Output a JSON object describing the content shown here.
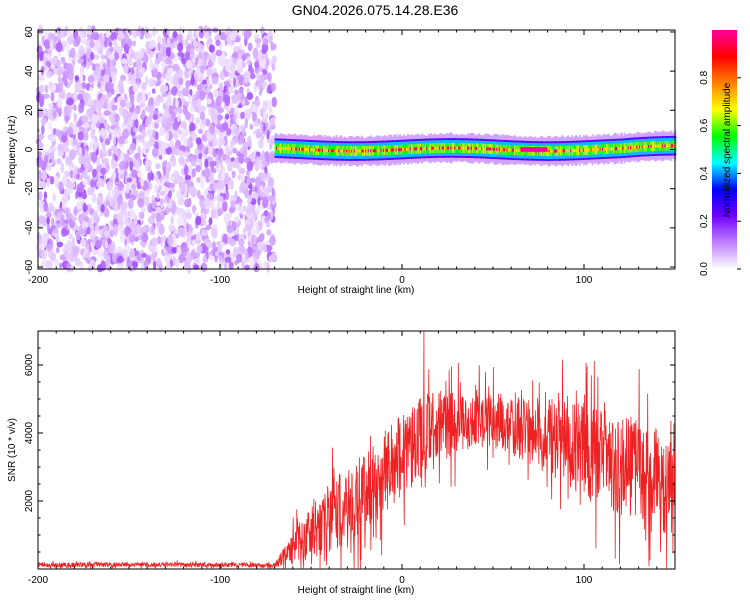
{
  "title": "GN04.2026.075.14.28.E36",
  "chart_data": [
    {
      "type": "heatmap",
      "xlabel": "Height of straight line (km)",
      "ylabel": "Frequency (Hz)",
      "xlim": [
        -200,
        150
      ],
      "ylim": [
        -61,
        61
      ],
      "xticks": [
        "-200",
        "-100",
        "0",
        "100"
      ],
      "yticks": [
        "60",
        "40",
        "20",
        "0",
        "-20",
        "-40",
        "-60"
      ],
      "colorbar": {
        "label": "Normalized spectral amplitude",
        "range": [
          0.0,
          1.0
        ],
        "ticks": [
          "0.0",
          "0.2",
          "0.4",
          "0.6",
          "0.8"
        ],
        "colors": [
          "#ffffff",
          "#c080ff",
          "#7000ff",
          "#0000ff",
          "#00ffff",
          "#00ff00",
          "#ffff00",
          "#ff8000",
          "#ff0000",
          "#ff00a0"
        ]
      },
      "regions": [
        {
          "description_id": "noise",
          "x_range": [
            -200,
            -70
          ],
          "y_range": [
            -61,
            61
          ],
          "amplitude_range": [
            0.0,
            0.1
          ]
        },
        {
          "description_id": "signal",
          "x_range": [
            -70,
            150
          ],
          "center_frequency_hz": 0,
          "half_width_hz": 4,
          "peak_amplitude": 1.0
        }
      ]
    },
    {
      "type": "line",
      "xlabel": "Height of straight line (km)",
      "ylabel": "SNR (10 * v/v)",
      "xlim": [
        -200,
        150
      ],
      "ylim": [
        0,
        7000
      ],
      "xticks": [
        "-200",
        "-100",
        "0",
        "100"
      ],
      "yticks": [
        "2000",
        "4000",
        "6000"
      ],
      "series_color": "#ee2222",
      "envelope_x": [
        -200,
        -150,
        -100,
        -70,
        -60,
        -40,
        -20,
        0,
        10,
        20,
        40,
        60,
        80,
        100,
        120,
        140,
        150
      ],
      "envelope_mean": [
        120,
        130,
        120,
        110,
        600,
        1500,
        2300,
        3300,
        3900,
        4200,
        4400,
        4200,
        3900,
        3500,
        3000,
        2600,
        2400
      ],
      "envelope_spread": [
        80,
        80,
        80,
        80,
        600,
        1300,
        1500,
        1600,
        1500,
        1300,
        1000,
        1100,
        1400,
        1700,
        1900,
        2000,
        2000
      ],
      "max_value": 7000,
      "max_at_x": 12
    }
  ]
}
